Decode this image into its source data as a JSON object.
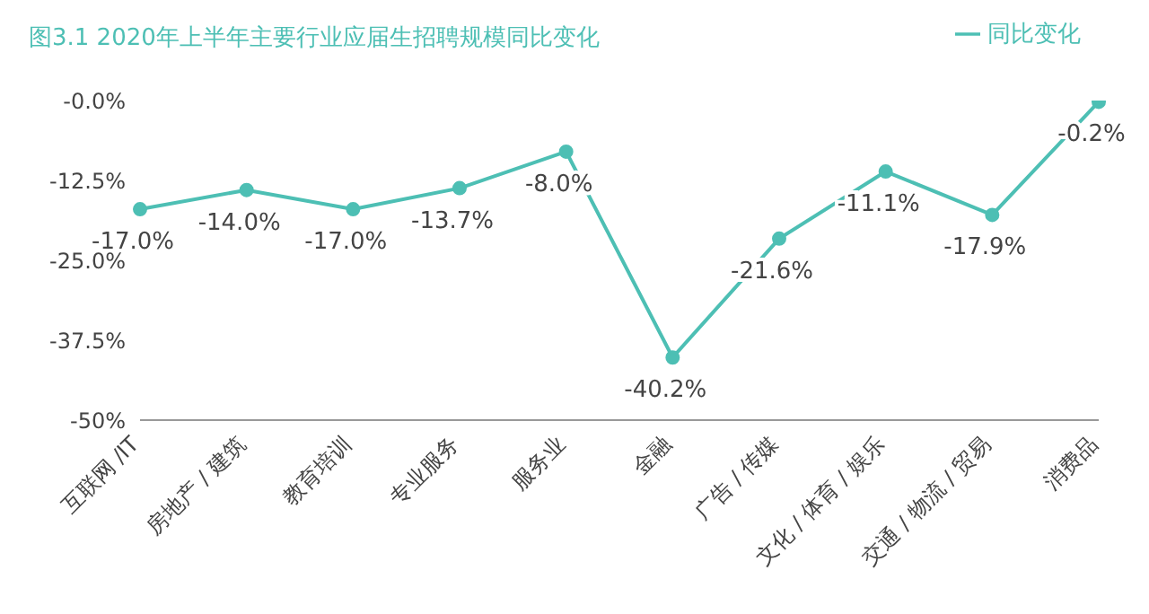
{
  "chart_data": {
    "type": "line",
    "title": "图3.1  2020年上半年主要行业应届生招聘规模同比变化",
    "categories": [
      "互联网 /IT",
      "房地产 / 建筑",
      "教育培训",
      "专业服务",
      "服务业",
      "金融",
      "广告 / 传媒",
      "文化 / 体育 / 娱乐",
      "交通 / 物流 / 贸易",
      "消费品"
    ],
    "series": [
      {
        "name": "同比变化",
        "color": "#4dbfb4",
        "values": [
          -17.0,
          -14.0,
          -17.0,
          -13.7,
          -8.0,
          -40.2,
          -21.6,
          -11.1,
          -17.9,
          -0.2
        ],
        "value_labels": [
          "-17.0%",
          "-14.0%",
          "-17.0%",
          "-13.7%",
          "-8.0%",
          "-40.2%",
          "-21.6%",
          "-11.1%",
          "-17.9%",
          "-0.2%"
        ]
      }
    ],
    "ylim": [
      -50,
      0
    ],
    "yticks": [
      {
        "value": 0,
        "label": "-0.0%"
      },
      {
        "value": -12.5,
        "label": "-12.5%"
      },
      {
        "value": -25,
        "label": "-25.0%"
      },
      {
        "value": -37.5,
        "label": "-37.5%"
      },
      {
        "value": -50,
        "label": "-50%"
      }
    ],
    "grid": false,
    "legend": "top right",
    "marker": "circle",
    "line_style": "solid"
  }
}
